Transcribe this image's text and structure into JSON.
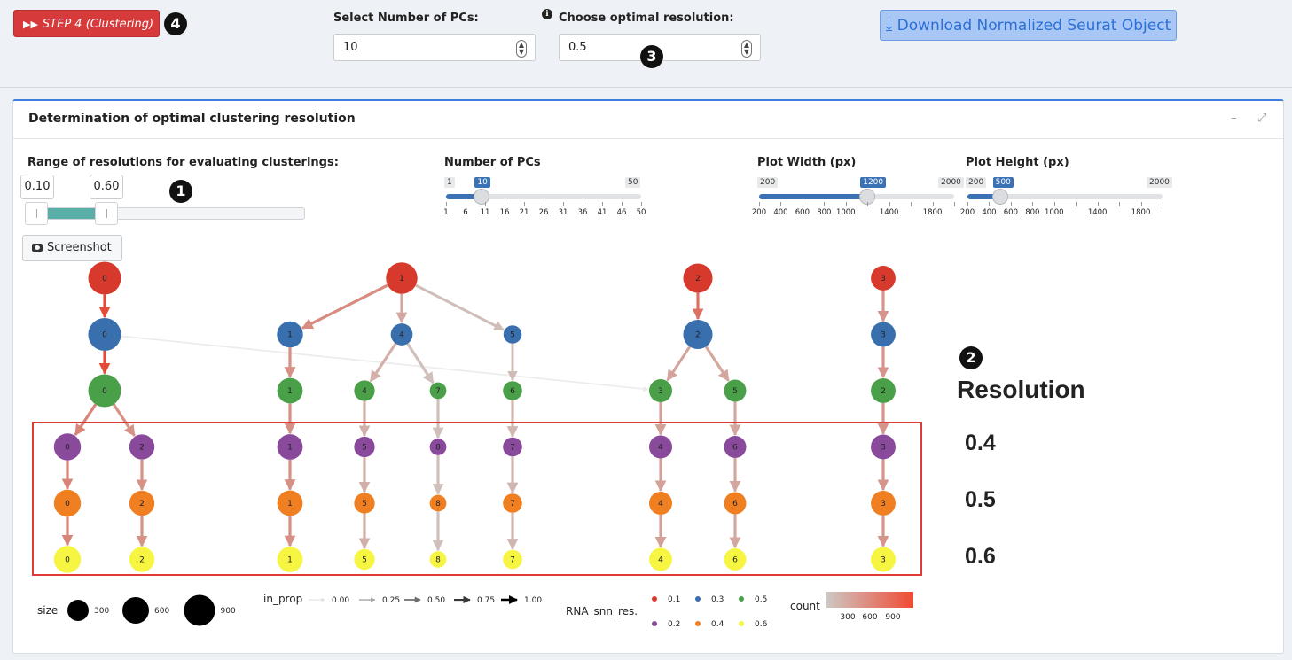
{
  "topbar": {
    "step_button": "STEP 4 (Clustering)",
    "step_badge": "4",
    "pcs_label": "Select Number of PCs:",
    "pcs_value": "10",
    "resolution_label": "Choose optimal resolution:",
    "resolution_value": "0.5",
    "resolution_badge": "3",
    "info_icon": "i",
    "download_button": "Download Normalized Seurat Object"
  },
  "card": {
    "title": "Determination of optimal clustering resolution",
    "minimize": "–",
    "expand": "⤢"
  },
  "controls": {
    "range_label": "Range of resolutions for evaluating clusterings:",
    "range_from": "0.10",
    "range_to": "0.60",
    "range_badge": "1",
    "range_from_value": 0.1,
    "range_to_value": 0.6,
    "range_min": 0.1,
    "range_max": 2.0,
    "npcs": {
      "label": "Number of PCs",
      "min": "1",
      "max": "50",
      "value": "10",
      "ticks": [
        "1",
        "6",
        "11",
        "16",
        "21",
        "26",
        "31",
        "36",
        "41",
        "46",
        "50"
      ]
    },
    "width": {
      "label": "Plot Width (px)",
      "min": "200",
      "max": "2000",
      "value": "1200",
      "ticks": [
        "200",
        "400",
        "600",
        "800",
        "1000",
        "",
        "1400",
        "",
        "1800",
        ""
      ]
    },
    "height": {
      "label": "Plot Height (px)",
      "min": "200",
      "max": "2000",
      "value": "500",
      "ticks": [
        "200",
        "400",
        "600",
        "800",
        "1000",
        "",
        "1400",
        "",
        "1800",
        ""
      ]
    },
    "screenshot_button": "Screenshot"
  },
  "annotation": {
    "plot_badge": "2",
    "resolution_title": "Resolution",
    "resolution_values": [
      "0.4",
      "0.5",
      "0.6"
    ]
  },
  "chart_data": {
    "type": "clustree",
    "levels": [
      "0.1",
      "0.2",
      "0.3",
      "0.4",
      "0.5",
      "0.6"
    ],
    "level_colors": [
      "#d73a2c",
      "#3a6fae",
      "#4aa048",
      "#8a4a9c",
      "#f07f22",
      "#f5f542"
    ],
    "nodes": [
      {
        "level": 0,
        "cluster": "0",
        "size": 900
      },
      {
        "level": 0,
        "cluster": "1",
        "size": 800
      },
      {
        "level": 0,
        "cluster": "2",
        "size": 650
      },
      {
        "level": 0,
        "cluster": "3",
        "size": 380
      },
      {
        "level": 1,
        "cluster": "0",
        "size": 900
      },
      {
        "level": 1,
        "cluster": "1",
        "size": 450
      },
      {
        "level": 1,
        "cluster": "4",
        "size": 250
      },
      {
        "level": 1,
        "cluster": "5",
        "size": 120
      },
      {
        "level": 1,
        "cluster": "2",
        "size": 650
      },
      {
        "level": 1,
        "cluster": "3",
        "size": 380
      },
      {
        "level": 2,
        "cluster": "0",
        "size": 900
      },
      {
        "level": 2,
        "cluster": "1",
        "size": 420
      },
      {
        "level": 2,
        "cluster": "4",
        "size": 200
      },
      {
        "level": 2,
        "cluster": "7",
        "size": 80
      },
      {
        "level": 2,
        "cluster": "6",
        "size": 150
      },
      {
        "level": 2,
        "cluster": "3",
        "size": 300
      },
      {
        "level": 2,
        "cluster": "5",
        "size": 260
      },
      {
        "level": 2,
        "cluster": "2",
        "size": 380
      },
      {
        "level": 3,
        "cluster": "0",
        "size": 500
      },
      {
        "level": 3,
        "cluster": "2",
        "size": 400
      },
      {
        "level": 3,
        "cluster": "1",
        "size": 420
      },
      {
        "level": 3,
        "cluster": "5",
        "size": 200
      },
      {
        "level": 3,
        "cluster": "8",
        "size": 80
      },
      {
        "level": 3,
        "cluster": "7",
        "size": 150
      },
      {
        "level": 3,
        "cluster": "4",
        "size": 300
      },
      {
        "level": 3,
        "cluster": "6",
        "size": 260
      },
      {
        "level": 3,
        "cluster": "3",
        "size": 380
      },
      {
        "level": 4,
        "cluster": "0",
        "size": 500
      },
      {
        "level": 4,
        "cluster": "2",
        "size": 400
      },
      {
        "level": 4,
        "cluster": "1",
        "size": 420
      },
      {
        "level": 4,
        "cluster": "5",
        "size": 200
      },
      {
        "level": 4,
        "cluster": "8",
        "size": 80
      },
      {
        "level": 4,
        "cluster": "7",
        "size": 150
      },
      {
        "level": 4,
        "cluster": "4",
        "size": 300
      },
      {
        "level": 4,
        "cluster": "6",
        "size": 260
      },
      {
        "level": 4,
        "cluster": "3",
        "size": 380
      },
      {
        "level": 5,
        "cluster": "0",
        "size": 500
      },
      {
        "level": 5,
        "cluster": "2",
        "size": 400
      },
      {
        "level": 5,
        "cluster": "1",
        "size": 420
      },
      {
        "level": 5,
        "cluster": "5",
        "size": 200
      },
      {
        "level": 5,
        "cluster": "8",
        "size": 80
      },
      {
        "level": 5,
        "cluster": "7",
        "size": 150
      },
      {
        "level": 5,
        "cluster": "4",
        "size": 300
      },
      {
        "level": 5,
        "cluster": "6",
        "size": 260
      },
      {
        "level": 5,
        "cluster": "3",
        "size": 380
      }
    ],
    "edges": [
      {
        "from": [
          0,
          "0"
        ],
        "to": [
          1,
          "0"
        ],
        "count": 900,
        "in_prop": 1.0
      },
      {
        "from": [
          0,
          "1"
        ],
        "to": [
          1,
          "1"
        ],
        "count": 450,
        "in_prop": 1.0
      },
      {
        "from": [
          0,
          "1"
        ],
        "to": [
          1,
          "4"
        ],
        "count": 250,
        "in_prop": 1.0
      },
      {
        "from": [
          0,
          "1"
        ],
        "to": [
          1,
          "5"
        ],
        "count": 100,
        "in_prop": 0.85
      },
      {
        "from": [
          0,
          "2"
        ],
        "to": [
          1,
          "2"
        ],
        "count": 650,
        "in_prop": 1.0
      },
      {
        "from": [
          0,
          "3"
        ],
        "to": [
          1,
          "3"
        ],
        "count": 380,
        "in_prop": 1.0
      },
      {
        "from": [
          1,
          "0"
        ],
        "to": [
          2,
          "0"
        ],
        "count": 900,
        "in_prop": 1.0
      },
      {
        "from": [
          1,
          "0"
        ],
        "to": [
          2,
          "3"
        ],
        "count": 20,
        "in_prop": 0.05
      },
      {
        "from": [
          1,
          "1"
        ],
        "to": [
          2,
          "1"
        ],
        "count": 420,
        "in_prop": 1.0
      },
      {
        "from": [
          1,
          "4"
        ],
        "to": [
          2,
          "4"
        ],
        "count": 200,
        "in_prop": 1.0
      },
      {
        "from": [
          1,
          "4"
        ],
        "to": [
          2,
          "7"
        ],
        "count": 80,
        "in_prop": 1.0
      },
      {
        "from": [
          1,
          "5"
        ],
        "to": [
          2,
          "6"
        ],
        "count": 120,
        "in_prop": 0.8
      },
      {
        "from": [
          1,
          "2"
        ],
        "to": [
          2,
          "3"
        ],
        "count": 280,
        "in_prop": 0.95
      },
      {
        "from": [
          1,
          "2"
        ],
        "to": [
          2,
          "5"
        ],
        "count": 260,
        "in_prop": 1.0
      },
      {
        "from": [
          1,
          "3"
        ],
        "to": [
          2,
          "2"
        ],
        "count": 380,
        "in_prop": 1.0
      },
      {
        "from": [
          2,
          "0"
        ],
        "to": [
          3,
          "0"
        ],
        "count": 500,
        "in_prop": 1.0
      },
      {
        "from": [
          2,
          "0"
        ],
        "to": [
          3,
          "2"
        ],
        "count": 400,
        "in_prop": 1.0
      },
      {
        "from": [
          2,
          "1"
        ],
        "to": [
          3,
          "1"
        ],
        "count": 420,
        "in_prop": 1.0
      },
      {
        "from": [
          2,
          "4"
        ],
        "to": [
          3,
          "5"
        ],
        "count": 200,
        "in_prop": 1.0
      },
      {
        "from": [
          2,
          "7"
        ],
        "to": [
          3,
          "8"
        ],
        "count": 80,
        "in_prop": 1.0
      },
      {
        "from": [
          2,
          "6"
        ],
        "to": [
          3,
          "7"
        ],
        "count": 150,
        "in_prop": 1.0
      },
      {
        "from": [
          2,
          "3"
        ],
        "to": [
          3,
          "4"
        ],
        "count": 300,
        "in_prop": 1.0
      },
      {
        "from": [
          2,
          "5"
        ],
        "to": [
          3,
          "6"
        ],
        "count": 260,
        "in_prop": 1.0
      },
      {
        "from": [
          2,
          "2"
        ],
        "to": [
          3,
          "3"
        ],
        "count": 380,
        "in_prop": 1.0
      },
      {
        "from": [
          3,
          "0"
        ],
        "to": [
          4,
          "0"
        ],
        "count": 500,
        "in_prop": 1.0
      },
      {
        "from": [
          3,
          "2"
        ],
        "to": [
          4,
          "2"
        ],
        "count": 400,
        "in_prop": 1.0
      },
      {
        "from": [
          3,
          "1"
        ],
        "to": [
          4,
          "1"
        ],
        "count": 420,
        "in_prop": 1.0
      },
      {
        "from": [
          3,
          "5"
        ],
        "to": [
          4,
          "5"
        ],
        "count": 200,
        "in_prop": 1.0
      },
      {
        "from": [
          3,
          "8"
        ],
        "to": [
          4,
          "8"
        ],
        "count": 80,
        "in_prop": 1.0
      },
      {
        "from": [
          3,
          "7"
        ],
        "to": [
          4,
          "7"
        ],
        "count": 150,
        "in_prop": 1.0
      },
      {
        "from": [
          3,
          "4"
        ],
        "to": [
          4,
          "4"
        ],
        "count": 300,
        "in_prop": 1.0
      },
      {
        "from": [
          3,
          "6"
        ],
        "to": [
          4,
          "6"
        ],
        "count": 260,
        "in_prop": 1.0
      },
      {
        "from": [
          3,
          "3"
        ],
        "to": [
          4,
          "3"
        ],
        "count": 380,
        "in_prop": 1.0
      },
      {
        "from": [
          4,
          "0"
        ],
        "to": [
          5,
          "0"
        ],
        "count": 500,
        "in_prop": 1.0
      },
      {
        "from": [
          4,
          "2"
        ],
        "to": [
          5,
          "2"
        ],
        "count": 400,
        "in_prop": 1.0
      },
      {
        "from": [
          4,
          "1"
        ],
        "to": [
          5,
          "1"
        ],
        "count": 420,
        "in_prop": 1.0
      },
      {
        "from": [
          4,
          "5"
        ],
        "to": [
          5,
          "5"
        ],
        "count": 200,
        "in_prop": 1.0
      },
      {
        "from": [
          4,
          "8"
        ],
        "to": [
          5,
          "8"
        ],
        "count": 80,
        "in_prop": 1.0
      },
      {
        "from": [
          4,
          "7"
        ],
        "to": [
          5,
          "7"
        ],
        "count": 150,
        "in_prop": 1.0
      },
      {
        "from": [
          4,
          "4"
        ],
        "to": [
          5,
          "4"
        ],
        "count": 300,
        "in_prop": 1.0
      },
      {
        "from": [
          4,
          "6"
        ],
        "to": [
          5,
          "6"
        ],
        "count": 260,
        "in_prop": 1.0
      },
      {
        "from": [
          4,
          "3"
        ],
        "to": [
          5,
          "3"
        ],
        "count": 380,
        "in_prop": 1.0
      }
    ],
    "legend": {
      "size_title": "size",
      "size_values": [
        "300",
        "600",
        "900"
      ],
      "in_prop_title": "in_prop",
      "in_prop_values": [
        "0.00",
        "0.25",
        "0.50",
        "0.75",
        "1.00"
      ],
      "res_title": "RNA_snn_res.",
      "res_values": [
        "0.1",
        "0.2",
        "0.3",
        "0.4",
        "0.5",
        "0.6"
      ],
      "count_title": "count",
      "count_values": [
        "300",
        "600",
        "900"
      ]
    },
    "highlight_levels": [
      "0.4",
      "0.5",
      "0.6"
    ]
  }
}
